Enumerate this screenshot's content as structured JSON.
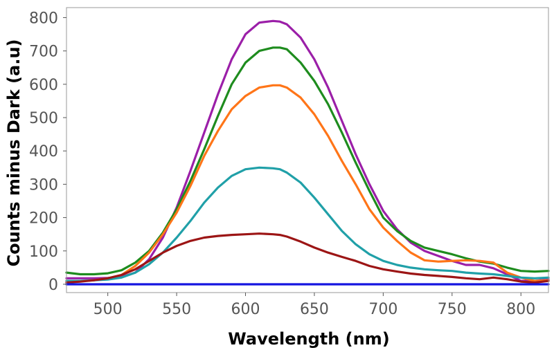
{
  "chart_data": {
    "type": "line",
    "xlabel": "Wavelength (nm)",
    "ylabel": "Counts minus Dark (a.u)",
    "xlim": [
      470,
      820
    ],
    "ylim": [
      -25,
      830
    ],
    "xticks": [
      500,
      550,
      600,
      650,
      700,
      750,
      800
    ],
    "yticks": [
      0,
      100,
      200,
      300,
      400,
      500,
      600,
      700,
      800
    ],
    "xtick_labels": [
      "500",
      "550",
      "600",
      "650",
      "700",
      "750",
      "800"
    ],
    "ytick_labels": [
      "0",
      "100",
      "200",
      "300",
      "400",
      "500",
      "600",
      "700",
      "800"
    ],
    "grid": false,
    "legend": "none",
    "x": [
      470,
      480,
      490,
      500,
      510,
      520,
      530,
      540,
      550,
      560,
      570,
      580,
      590,
      600,
      610,
      620,
      625,
      630,
      640,
      650,
      660,
      670,
      680,
      690,
      700,
      710,
      720,
      730,
      740,
      750,
      760,
      770,
      780,
      790,
      800,
      810,
      820
    ],
    "series": [
      {
        "color": "#9b1fa8",
        "values": [
          18,
          18,
          18,
          19,
          22,
          35,
          75,
          140,
          230,
          340,
          455,
          570,
          675,
          750,
          785,
          790,
          788,
          780,
          740,
          675,
          590,
          490,
          390,
          300,
          220,
          165,
          125,
          100,
          85,
          70,
          58,
          58,
          48,
          30,
          10,
          10,
          15
        ]
      },
      {
        "color": "#1e8c1e",
        "values": [
          35,
          30,
          30,
          33,
          42,
          65,
          100,
          155,
          225,
          310,
          405,
          505,
          600,
          665,
          700,
          710,
          710,
          705,
          665,
          610,
          540,
          455,
          365,
          280,
          200,
          160,
          130,
          110,
          100,
          90,
          78,
          68,
          62,
          50,
          40,
          38,
          40
        ]
      },
      {
        "color": "#ff7518",
        "values": [
          10,
          10,
          12,
          18,
          28,
          55,
          95,
          150,
          215,
          295,
          385,
          460,
          525,
          565,
          590,
          597,
          597,
          590,
          560,
          510,
          445,
          370,
          300,
          225,
          170,
          130,
          95,
          72,
          68,
          70,
          72,
          70,
          65,
          35,
          20,
          10,
          12
        ]
      },
      {
        "color": "#20a0a8",
        "values": [
          10,
          10,
          12,
          14,
          20,
          35,
          60,
          95,
          140,
          190,
          245,
          290,
          325,
          345,
          350,
          348,
          345,
          335,
          305,
          260,
          210,
          160,
          120,
          90,
          70,
          58,
          50,
          45,
          42,
          40,
          35,
          32,
          30,
          25,
          20,
          18,
          20
        ]
      },
      {
        "color": "#9c1515",
        "values": [
          5,
          8,
          12,
          18,
          28,
          45,
          70,
          95,
          115,
          130,
          140,
          145,
          148,
          150,
          152,
          150,
          148,
          143,
          128,
          110,
          95,
          82,
          70,
          55,
          45,
          38,
          32,
          28,
          25,
          22,
          18,
          15,
          20,
          15,
          8,
          5,
          10
        ]
      },
      {
        "color": "#1515e0",
        "values": [
          0,
          0,
          0,
          0,
          0,
          0,
          0,
          0,
          0,
          0,
          0,
          0,
          0,
          0,
          0,
          0,
          0,
          0,
          0,
          0,
          0,
          0,
          0,
          0,
          0,
          0,
          0,
          0,
          0,
          0,
          0,
          0,
          0,
          0,
          0,
          0,
          0
        ]
      }
    ]
  }
}
